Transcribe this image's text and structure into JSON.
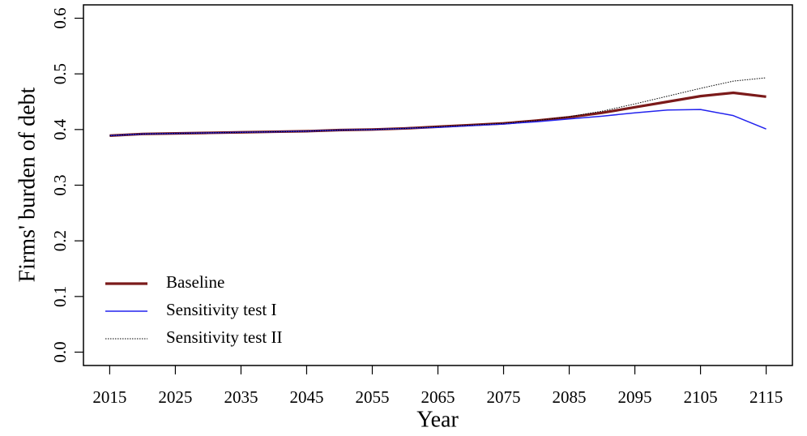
{
  "chart_data": {
    "type": "line",
    "x_label": "Year",
    "y_label": "Firms' burden of debt",
    "x": [
      2015,
      2020,
      2025,
      2030,
      2035,
      2040,
      2045,
      2050,
      2055,
      2060,
      2065,
      2070,
      2075,
      2080,
      2085,
      2090,
      2095,
      2100,
      2105,
      2110,
      2115
    ],
    "series": [
      {
        "name": "Baseline",
        "color": "#7b1a1a",
        "values": [
          0.389,
          0.392,
          0.393,
          0.394,
          0.395,
          0.396,
          0.397,
          0.399,
          0.4,
          0.402,
          0.405,
          0.408,
          0.411,
          0.416,
          0.422,
          0.43,
          0.44,
          0.45,
          0.46,
          0.466,
          0.459
        ]
      },
      {
        "name": "Sensitivity test I",
        "color": "#2222ee",
        "values": [
          0.389,
          0.392,
          0.393,
          0.394,
          0.395,
          0.396,
          0.397,
          0.399,
          0.4,
          0.402,
          0.404,
          0.407,
          0.41,
          0.414,
          0.419,
          0.424,
          0.43,
          0.435,
          0.436,
          0.425,
          0.401
        ]
      },
      {
        "name": "Sensitivity test II",
        "color": "#000000",
        "values": [
          0.389,
          0.392,
          0.393,
          0.394,
          0.395,
          0.396,
          0.397,
          0.399,
          0.4,
          0.402,
          0.405,
          0.408,
          0.411,
          0.416,
          0.423,
          0.433,
          0.446,
          0.46,
          0.474,
          0.487,
          0.493
        ]
      }
    ],
    "xlim": [
      2011,
      2119
    ],
    "ylim": [
      -0.024,
      0.624
    ],
    "xticks": [
      2015,
      2025,
      2035,
      2045,
      2055,
      2065,
      2075,
      2085,
      2095,
      2105,
      2115
    ],
    "yticks": [
      {
        "value": 0,
        "label": "0.0"
      },
      0.1,
      0.2,
      0.3,
      0.4,
      0.5,
      0.6
    ],
    "legend": "bottom-left",
    "grid": false
  }
}
